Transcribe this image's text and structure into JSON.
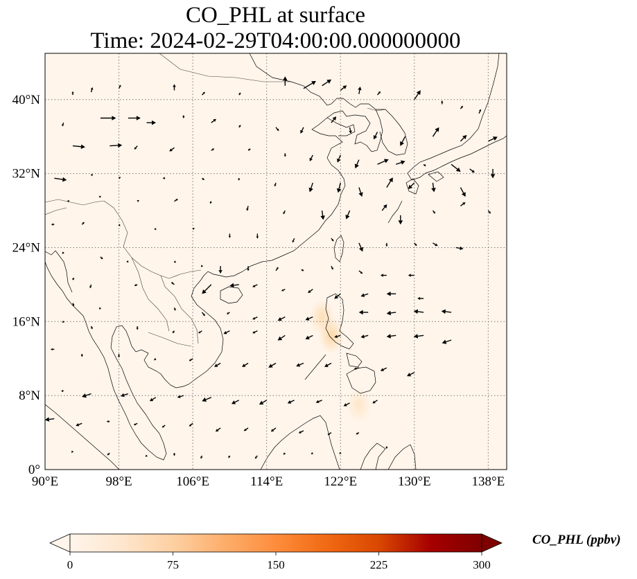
{
  "title": {
    "line1": "CO_PHL at surface",
    "line2": "Time: 2024-02-29T04:00:00.000000000"
  },
  "map": {
    "projection": "PlateCarree",
    "lon_range": [
      90,
      140
    ],
    "lat_range": [
      0,
      45
    ],
    "gridlines": "dotted",
    "background_color": "#fff5eb",
    "coastline_color": "#000000",
    "lon_ticks": [
      {
        "value": 90,
        "label": "90°E"
      },
      {
        "value": 98,
        "label": "98°E"
      },
      {
        "value": 106,
        "label": "106°E"
      },
      {
        "value": 114,
        "label": "114°E"
      },
      {
        "value": 122,
        "label": "122°E"
      },
      {
        "value": 130,
        "label": "130°E"
      },
      {
        "value": 138,
        "label": "138°E"
      }
    ],
    "lat_ticks": [
      {
        "value": 0,
        "label": "0°"
      },
      {
        "value": 8,
        "label": "8°N"
      },
      {
        "value": 16,
        "label": "16°N"
      },
      {
        "value": 24,
        "label": "24°N"
      },
      {
        "value": 32,
        "label": "32°N"
      },
      {
        "value": 40,
        "label": "40°N"
      }
    ],
    "concentration_spots": [
      {
        "lon": 120.0,
        "lat": 16.5,
        "value": 30
      },
      {
        "lon": 121.0,
        "lat": 14.5,
        "value": 40
      },
      {
        "lon": 124.0,
        "lat": 7.0,
        "value": 20
      }
    ],
    "wind_vectors": [
      [
        93,
        40.5,
        0,
        0.6
      ],
      [
        95,
        40.8,
        0.2,
        0.8
      ],
      [
        98,
        41.2,
        0.3,
        0.6
      ],
      [
        104,
        41,
        0,
        1
      ],
      [
        107,
        40.5,
        0.5,
        0.5
      ],
      [
        111,
        40.5,
        0.3,
        0.4
      ],
      [
        116,
        41.5,
        0,
        1.5
      ],
      [
        118,
        41.2,
        2,
        1.2
      ],
      [
        120,
        41.5,
        1.5,
        1
      ],
      [
        122,
        41,
        1,
        0.8
      ],
      [
        124,
        40.6,
        0.2,
        1.2
      ],
      [
        126,
        40.5,
        0.5,
        0.6
      ],
      [
        130,
        40,
        1,
        1.5
      ],
      [
        133,
        39.5,
        0,
        0.6
      ],
      [
        135,
        39,
        0.4,
        0.5
      ],
      [
        137,
        38.5,
        0.3,
        0.7
      ],
      [
        92,
        37.5,
        -0.2,
        -0.6
      ],
      [
        96,
        38,
        2.5,
        0
      ],
      [
        99,
        38,
        2,
        0
      ],
      [
        101,
        37.5,
        1.5,
        0
      ],
      [
        105,
        38,
        0,
        0.5
      ],
      [
        108,
        37.5,
        0.8,
        0.6
      ],
      [
        111,
        37,
        0.3,
        0.4
      ],
      [
        115,
        37,
        0.5,
        -0.6
      ],
      [
        118,
        37,
        -0.5,
        -1
      ],
      [
        121,
        37.5,
        0.8,
        1
      ],
      [
        123,
        37,
        0.2,
        -1
      ],
      [
        126,
        36.5,
        -0.6,
        -1.2
      ],
      [
        129,
        36,
        -0.8,
        -1.5
      ],
      [
        132,
        36,
        1,
        1.5
      ],
      [
        135,
        35.5,
        1,
        1
      ],
      [
        138,
        35.5,
        1.5,
        0.7
      ],
      [
        93,
        35,
        2,
        -0.2
      ],
      [
        97,
        35,
        2,
        0.1
      ],
      [
        100,
        35,
        -0.5,
        -0.6
      ],
      [
        104,
        34.8,
        -0.8,
        -0.6
      ],
      [
        108,
        34.5,
        0.5,
        0.3
      ],
      [
        112,
        34.5,
        0.4,
        0.3
      ],
      [
        116,
        34.2,
        0,
        -0.6
      ],
      [
        119,
        34,
        -0.5,
        -1
      ],
      [
        122,
        34,
        -0.5,
        -1.2
      ],
      [
        124,
        33.5,
        -0.6,
        -1.4
      ],
      [
        126,
        33,
        1.8,
        0.8
      ],
      [
        128,
        33,
        1.5,
        0.5
      ],
      [
        131,
        33,
        0.4,
        -0.3
      ],
      [
        134,
        33,
        1.5,
        -1.2
      ],
      [
        136,
        32.5,
        0.8,
        -0.6
      ],
      [
        138.5,
        32.5,
        0,
        -1.5
      ],
      [
        91,
        31.5,
        2,
        -0.3
      ],
      [
        95,
        31.8,
        0.3,
        0.2
      ],
      [
        98,
        31.5,
        0.3,
        0.2
      ],
      [
        103,
        31.5,
        -0.4,
        0
      ],
      [
        107,
        31.5,
        0.4,
        -0.3
      ],
      [
        111,
        31.5,
        0,
        -0.4
      ],
      [
        115,
        31,
        -0.2,
        -0.6
      ],
      [
        119,
        31,
        -0.5,
        -1.5
      ],
      [
        122,
        31,
        -0.4,
        -1.6
      ],
      [
        124,
        30.5,
        0.5,
        -1.5
      ],
      [
        127,
        30.5,
        1,
        1.6
      ],
      [
        130,
        31,
        -1,
        -1
      ],
      [
        132,
        31,
        0.2,
        -1.5
      ],
      [
        135,
        30.5,
        0.8,
        -1.5
      ],
      [
        92.5,
        29,
        0.2,
        0.2
      ],
      [
        96,
        29.5,
        -0.3,
        0
      ],
      [
        100,
        29,
        0.3,
        0.2
      ],
      [
        104,
        29,
        0.6,
        0.4
      ],
      [
        108,
        29,
        -0.2,
        -0.4
      ],
      [
        112,
        28.5,
        -0.2,
        -0.8
      ],
      [
        116,
        28,
        -0.3,
        -0.6
      ],
      [
        120,
        28,
        0.2,
        -1.5
      ],
      [
        123,
        28,
        -0.6,
        -1.4
      ],
      [
        126.5,
        28,
        0.8,
        1
      ],
      [
        128.5,
        27.5,
        0,
        -1.5
      ],
      [
        132,
        28,
        0.4,
        -0.5
      ],
      [
        135,
        28.5,
        0.8,
        0.6
      ],
      [
        138,
        28,
        0.4,
        -0.5
      ],
      [
        91,
        26.5,
        -0.5,
        0
      ],
      [
        94,
        26.5,
        0.4,
        0.4
      ],
      [
        98,
        26.5,
        0.2,
        -0.3
      ],
      [
        102,
        26,
        -0.3,
        0
      ],
      [
        106,
        26,
        0.3,
        0.2
      ],
      [
        110,
        25.5,
        0,
        -0.7
      ],
      [
        113,
        25.5,
        0,
        -0.8
      ],
      [
        117,
        25,
        -0.3,
        -0.7
      ],
      [
        121,
        25,
        0.4,
        -0.5
      ],
      [
        124,
        24.5,
        0.6,
        -1.4
      ],
      [
        127,
        24.5,
        0,
        -0.6
      ],
      [
        130,
        24.5,
        0.4,
        -0.5
      ],
      [
        132,
        24.5,
        0.8,
        -0.5
      ],
      [
        134.5,
        24,
        1.2,
        -0.2
      ],
      [
        92,
        23.5,
        -0.2,
        -0.3
      ],
      [
        96,
        23,
        0.4,
        -0.4
      ],
      [
        99,
        22.5,
        -0.3,
        -0.1
      ],
      [
        104,
        22.5,
        0.3,
        -0.2
      ],
      [
        107,
        22,
        0.2,
        0
      ],
      [
        109,
        22,
        0,
        -1.2
      ],
      [
        112,
        22,
        0,
        -0.8
      ],
      [
        115,
        21.5,
        0.4,
        0.6
      ],
      [
        118,
        21.5,
        -0.4,
        0.2
      ],
      [
        121,
        22,
        0.3,
        -0.6
      ],
      [
        124,
        21.5,
        0.6,
        -0.5
      ],
      [
        127,
        21,
        -1,
        0
      ],
      [
        130,
        21,
        -1,
        0
      ],
      [
        93,
        20.5,
        0.2,
        0.4
      ],
      [
        95,
        20,
        -0.2,
        -0.6
      ],
      [
        100,
        20,
        -0.5,
        -0.2
      ],
      [
        104,
        20,
        -0.5,
        0.4
      ],
      [
        108,
        20,
        -1.5,
        -1.5
      ],
      [
        111,
        20,
        -1.5,
        -0.2
      ],
      [
        113,
        20,
        -0.8,
        -0.4
      ],
      [
        116,
        19.5,
        -0.6,
        -0.3
      ],
      [
        119,
        19.5,
        -0.8,
        -0.6
      ],
      [
        122,
        19,
        -1,
        -0.8
      ],
      [
        125,
        19,
        -1.2,
        -0.4
      ],
      [
        128,
        19,
        -1.5,
        0
      ],
      [
        131,
        18.5,
        -1,
        0
      ],
      [
        93,
        18,
        0.2,
        -0.5
      ],
      [
        96,
        17.5,
        -0.2,
        -0.3
      ],
      [
        104,
        17.5,
        0.2,
        -0.5
      ],
      [
        107,
        17,
        0.5,
        -0.6
      ],
      [
        110,
        17,
        -0.5,
        -0.3
      ],
      [
        113,
        16.5,
        -0.8,
        -0.4
      ],
      [
        116,
        16.5,
        -1.2,
        -0.6
      ],
      [
        119,
        16.5,
        -1.2,
        -0.5
      ],
      [
        125,
        17,
        -1.5,
        0
      ],
      [
        128,
        17,
        -1.5,
        -0.2
      ],
      [
        131,
        17,
        -1.6,
        0.2
      ],
      [
        134,
        17,
        -1.6,
        0.2
      ],
      [
        92,
        16,
        -0.2,
        -0.2
      ],
      [
        95,
        15.5,
        0.2,
        -0.5
      ],
      [
        100,
        15.5,
        0,
        -0.6
      ],
      [
        104,
        15,
        -0.3,
        -0.4
      ],
      [
        107,
        15,
        -0.6,
        -0.4
      ],
      [
        110,
        15,
        -1,
        -0.5
      ],
      [
        113,
        15,
        -0.8,
        -0.4
      ],
      [
        116,
        14.5,
        -1.2,
        -0.8
      ],
      [
        119,
        14.5,
        -1.2,
        -0.6
      ],
      [
        122,
        14.5,
        -1,
        -0.3
      ],
      [
        125,
        14.5,
        -1.2,
        -0.3
      ],
      [
        128,
        14.5,
        -1.5,
        -0.2
      ],
      [
        131,
        14.5,
        -1.6,
        -0.2
      ],
      [
        134,
        14,
        -1.5,
        -0.5
      ],
      [
        91,
        13,
        -0.6,
        0
      ],
      [
        94,
        12.5,
        0,
        -0.5
      ],
      [
        98,
        12.5,
        0,
        -0.6
      ],
      [
        102,
        12,
        -0.3,
        -0.3
      ],
      [
        106,
        12,
        -0.6,
        -0.4
      ],
      [
        109,
        11.5,
        -1,
        -0.6
      ],
      [
        112,
        11.5,
        -1,
        -0.6
      ],
      [
        115,
        11.5,
        -1.2,
        -0.7
      ],
      [
        118,
        11.5,
        -1.2,
        -0.5
      ],
      [
        121,
        11.5,
        -1.1,
        -0.6
      ],
      [
        124,
        11,
        -0.8,
        -0.2
      ],
      [
        127,
        11,
        -1,
        -0.5
      ],
      [
        130,
        10.5,
        -1.2,
        -0.6
      ],
      [
        92,
        8.5,
        -0.4,
        0
      ],
      [
        95,
        8.2,
        -1.5,
        -0.5
      ],
      [
        99,
        8.2,
        -1.2,
        -0.4
      ],
      [
        102,
        7.8,
        -1,
        -0.6
      ],
      [
        105,
        8,
        -1,
        -0.3
      ],
      [
        108,
        7.8,
        -1.5,
        -0.6
      ],
      [
        111,
        7.5,
        -1.2,
        -0.6
      ],
      [
        114,
        7.5,
        -1.2,
        -0.7
      ],
      [
        117,
        7.5,
        -1.1,
        -0.5
      ],
      [
        120,
        7.5,
        -1,
        -0.4
      ],
      [
        123,
        7.2,
        -1,
        -0.5
      ],
      [
        126,
        7.5,
        -0.8,
        -0.5
      ],
      [
        91,
        5.5,
        -1.5,
        -0.2
      ],
      [
        94,
        5,
        -1,
        -0.4
      ],
      [
        97,
        5.2,
        -0.5,
        0
      ],
      [
        100,
        5,
        -0.6,
        -0.3
      ],
      [
        103,
        4.8,
        -0.5,
        -0.4
      ],
      [
        106,
        5,
        -0.6,
        -0.5
      ],
      [
        109,
        4.5,
        -0.8,
        -0.6
      ],
      [
        112,
        4.5,
        -0.7,
        -0.5
      ],
      [
        115,
        4.5,
        -0.8,
        -0.6
      ],
      [
        118,
        4.2,
        -0.8,
        -0.4
      ],
      [
        121,
        4,
        -0.6,
        -0.4
      ],
      [
        124,
        4,
        -0.5,
        -0.3
      ],
      [
        127,
        2.5,
        0,
        -0.4
      ],
      [
        93,
        2,
        -0.2,
        -0.3
      ],
      [
        97,
        1.8,
        -0.4,
        -0.4
      ],
      [
        101,
        1.5,
        -0.2,
        -0.2
      ],
      [
        104,
        1.8,
        0,
        -0.5
      ],
      [
        107,
        1.5,
        -0.2,
        -0.5
      ],
      [
        110,
        1.5,
        -0.2,
        -0.4
      ],
      [
        113,
        1.5,
        -0.4,
        -0.5
      ],
      [
        116,
        1.8,
        -0.3,
        -0.3
      ],
      [
        119,
        1.8,
        -0.3,
        -0.2
      ],
      [
        122,
        1.8,
        -0.2,
        -0.2
      ]
    ]
  },
  "colorbar": {
    "label": "CO_PHL (ppbv)",
    "min": 0,
    "max": 300,
    "extend": "both",
    "colormap": [
      "#fff5eb",
      "#fee6ce",
      "#fdd0a2",
      "#fdae6b",
      "#fd8d3c",
      "#f16913",
      "#d94801",
      "#a60000",
      "#7f0000"
    ],
    "ticks": [
      {
        "value": 0,
        "label": "0"
      },
      {
        "value": 75,
        "label": "75"
      },
      {
        "value": 150,
        "label": "150"
      },
      {
        "value": 225,
        "label": "225"
      },
      {
        "value": 300,
        "label": "300"
      }
    ]
  }
}
